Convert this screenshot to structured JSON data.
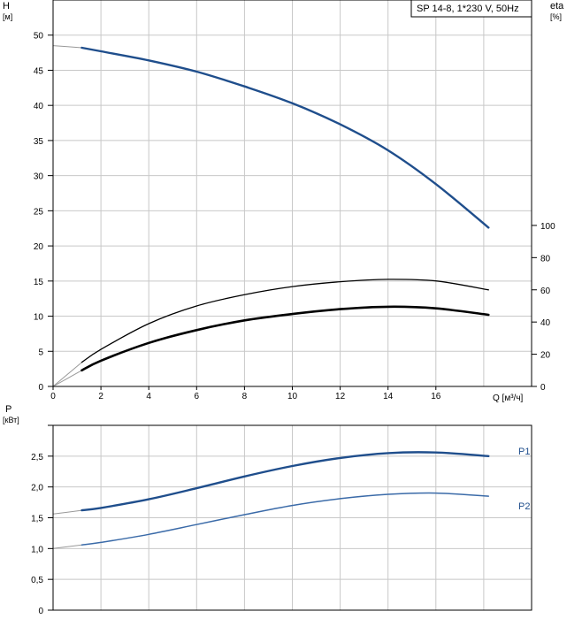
{
  "chart_data": [
    {
      "type": "line",
      "legend_box": "SP 14-8, 1*230 V, 50Hz",
      "xlabel": "Q [м³/ч]",
      "y_left_label_top": "H",
      "y_left_label_unit": "[м]",
      "y_right_label_top": "eta",
      "y_right_label_unit": "[%]",
      "xlim": [
        0,
        20
      ],
      "y_left_lim": [
        0,
        55
      ],
      "y_right_lim": [
        0,
        240
      ],
      "x_ticks": [
        0,
        2,
        4,
        6,
        8,
        10,
        12,
        14,
        16
      ],
      "y_left_ticks": [
        0,
        5,
        10,
        15,
        20,
        25,
        30,
        35,
        40,
        45,
        50
      ],
      "y_right_ticks": [
        0,
        20,
        40,
        60,
        80,
        100
      ],
      "grid": true,
      "series": [
        {
          "axis": "left",
          "color": "#1f4e8c",
          "x": [
            0,
            1.2,
            2,
            4,
            6,
            8,
            10,
            12,
            14,
            16,
            18.2
          ],
          "y": [
            48.5,
            48.2,
            47.7,
            46.4,
            44.8,
            42.7,
            40.3,
            37.3,
            33.6,
            28.8,
            22.6
          ]
        },
        {
          "axis": "right",
          "color": "#000000",
          "x": [
            0,
            1.2,
            2,
            4,
            6,
            8,
            10,
            12,
            14,
            16,
            18.2
          ],
          "y": [
            0,
            15,
            23,
            39,
            50,
            57,
            62,
            65,
            66.5,
            65.5,
            60
          ]
        },
        {
          "axis": "right",
          "color": "#000000",
          "x": [
            0,
            1.2,
            2,
            4,
            6,
            8,
            10,
            12,
            14,
            16,
            18.2
          ],
          "y": [
            0,
            10,
            16,
            27,
            35,
            41,
            45,
            48,
            49.5,
            48.5,
            44.5
          ]
        }
      ]
    },
    {
      "type": "line",
      "y_label_top": "P",
      "y_label_unit": "[кВт]",
      "xlim": [
        0,
        20
      ],
      "ylim": [
        0,
        3.0
      ],
      "y_ticks": [
        "0",
        "0,5",
        "1,0",
        "1,5",
        "2,0",
        "2,5"
      ],
      "y_tick_values": [
        0,
        0.5,
        1.0,
        1.5,
        2.0,
        2.5
      ],
      "grid": true,
      "series": [
        {
          "name": "P1",
          "color": "#1f4e8c",
          "x": [
            0,
            1.2,
            2,
            4,
            6,
            8,
            10,
            12,
            14,
            16,
            18.2
          ],
          "y": [
            1.56,
            1.62,
            1.66,
            1.8,
            1.98,
            2.17,
            2.34,
            2.47,
            2.55,
            2.56,
            2.5
          ]
        },
        {
          "name": "P2",
          "color": "#3a6aa8",
          "x": [
            0,
            1.2,
            2,
            4,
            6,
            8,
            10,
            12,
            14,
            16,
            18.2
          ],
          "y": [
            1.0,
            1.06,
            1.1,
            1.23,
            1.39,
            1.55,
            1.7,
            1.81,
            1.88,
            1.9,
            1.85
          ]
        }
      ]
    }
  ]
}
